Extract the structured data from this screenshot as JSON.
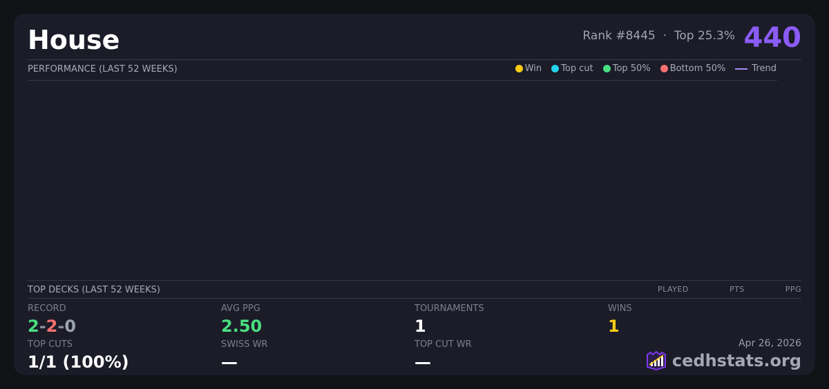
{
  "header": {
    "title": "House",
    "rank": "Rank #8445",
    "separator": "·",
    "percentile": "Top 25.3%",
    "score": "440"
  },
  "performance": {
    "label": "PERFORMANCE (LAST 52 WEEKS)",
    "legend": [
      {
        "label": "Win",
        "color": "#facc15"
      },
      {
        "label": "Top cut",
        "color": "#22d3ee"
      },
      {
        "label": "Top 50%",
        "color": "#4ade80"
      },
      {
        "label": "Bottom 50%",
        "color": "#f87171"
      },
      {
        "label": "Trend",
        "color": "#a78bfa"
      }
    ]
  },
  "top_decks": {
    "label": "TOP DECKS (LAST 52 WEEKS)",
    "columns": [
      "PLAYED",
      "PTS",
      "PPG"
    ]
  },
  "stats": {
    "record": {
      "label": "RECORD",
      "wins": "2",
      "losses": "2",
      "draws": "0",
      "sep": "-"
    },
    "avg_ppg": {
      "label": "AVG PPG",
      "value": "2.50"
    },
    "tournaments": {
      "label": "TOURNAMENTS",
      "value": "1"
    },
    "wins": {
      "label": "WINS",
      "value": "1"
    },
    "top_cuts": {
      "label": "TOP CUTS",
      "value": "1/1 (100%)"
    },
    "swiss_wr": {
      "label": "SWISS WR",
      "value": "—"
    },
    "top_cut_wr": {
      "label": "TOP CUT WR",
      "value": "—"
    }
  },
  "footer": {
    "date": "Apr 26, 2026",
    "brand": "cedhstats.org",
    "logo_icon": "chart-shield-icon"
  }
}
